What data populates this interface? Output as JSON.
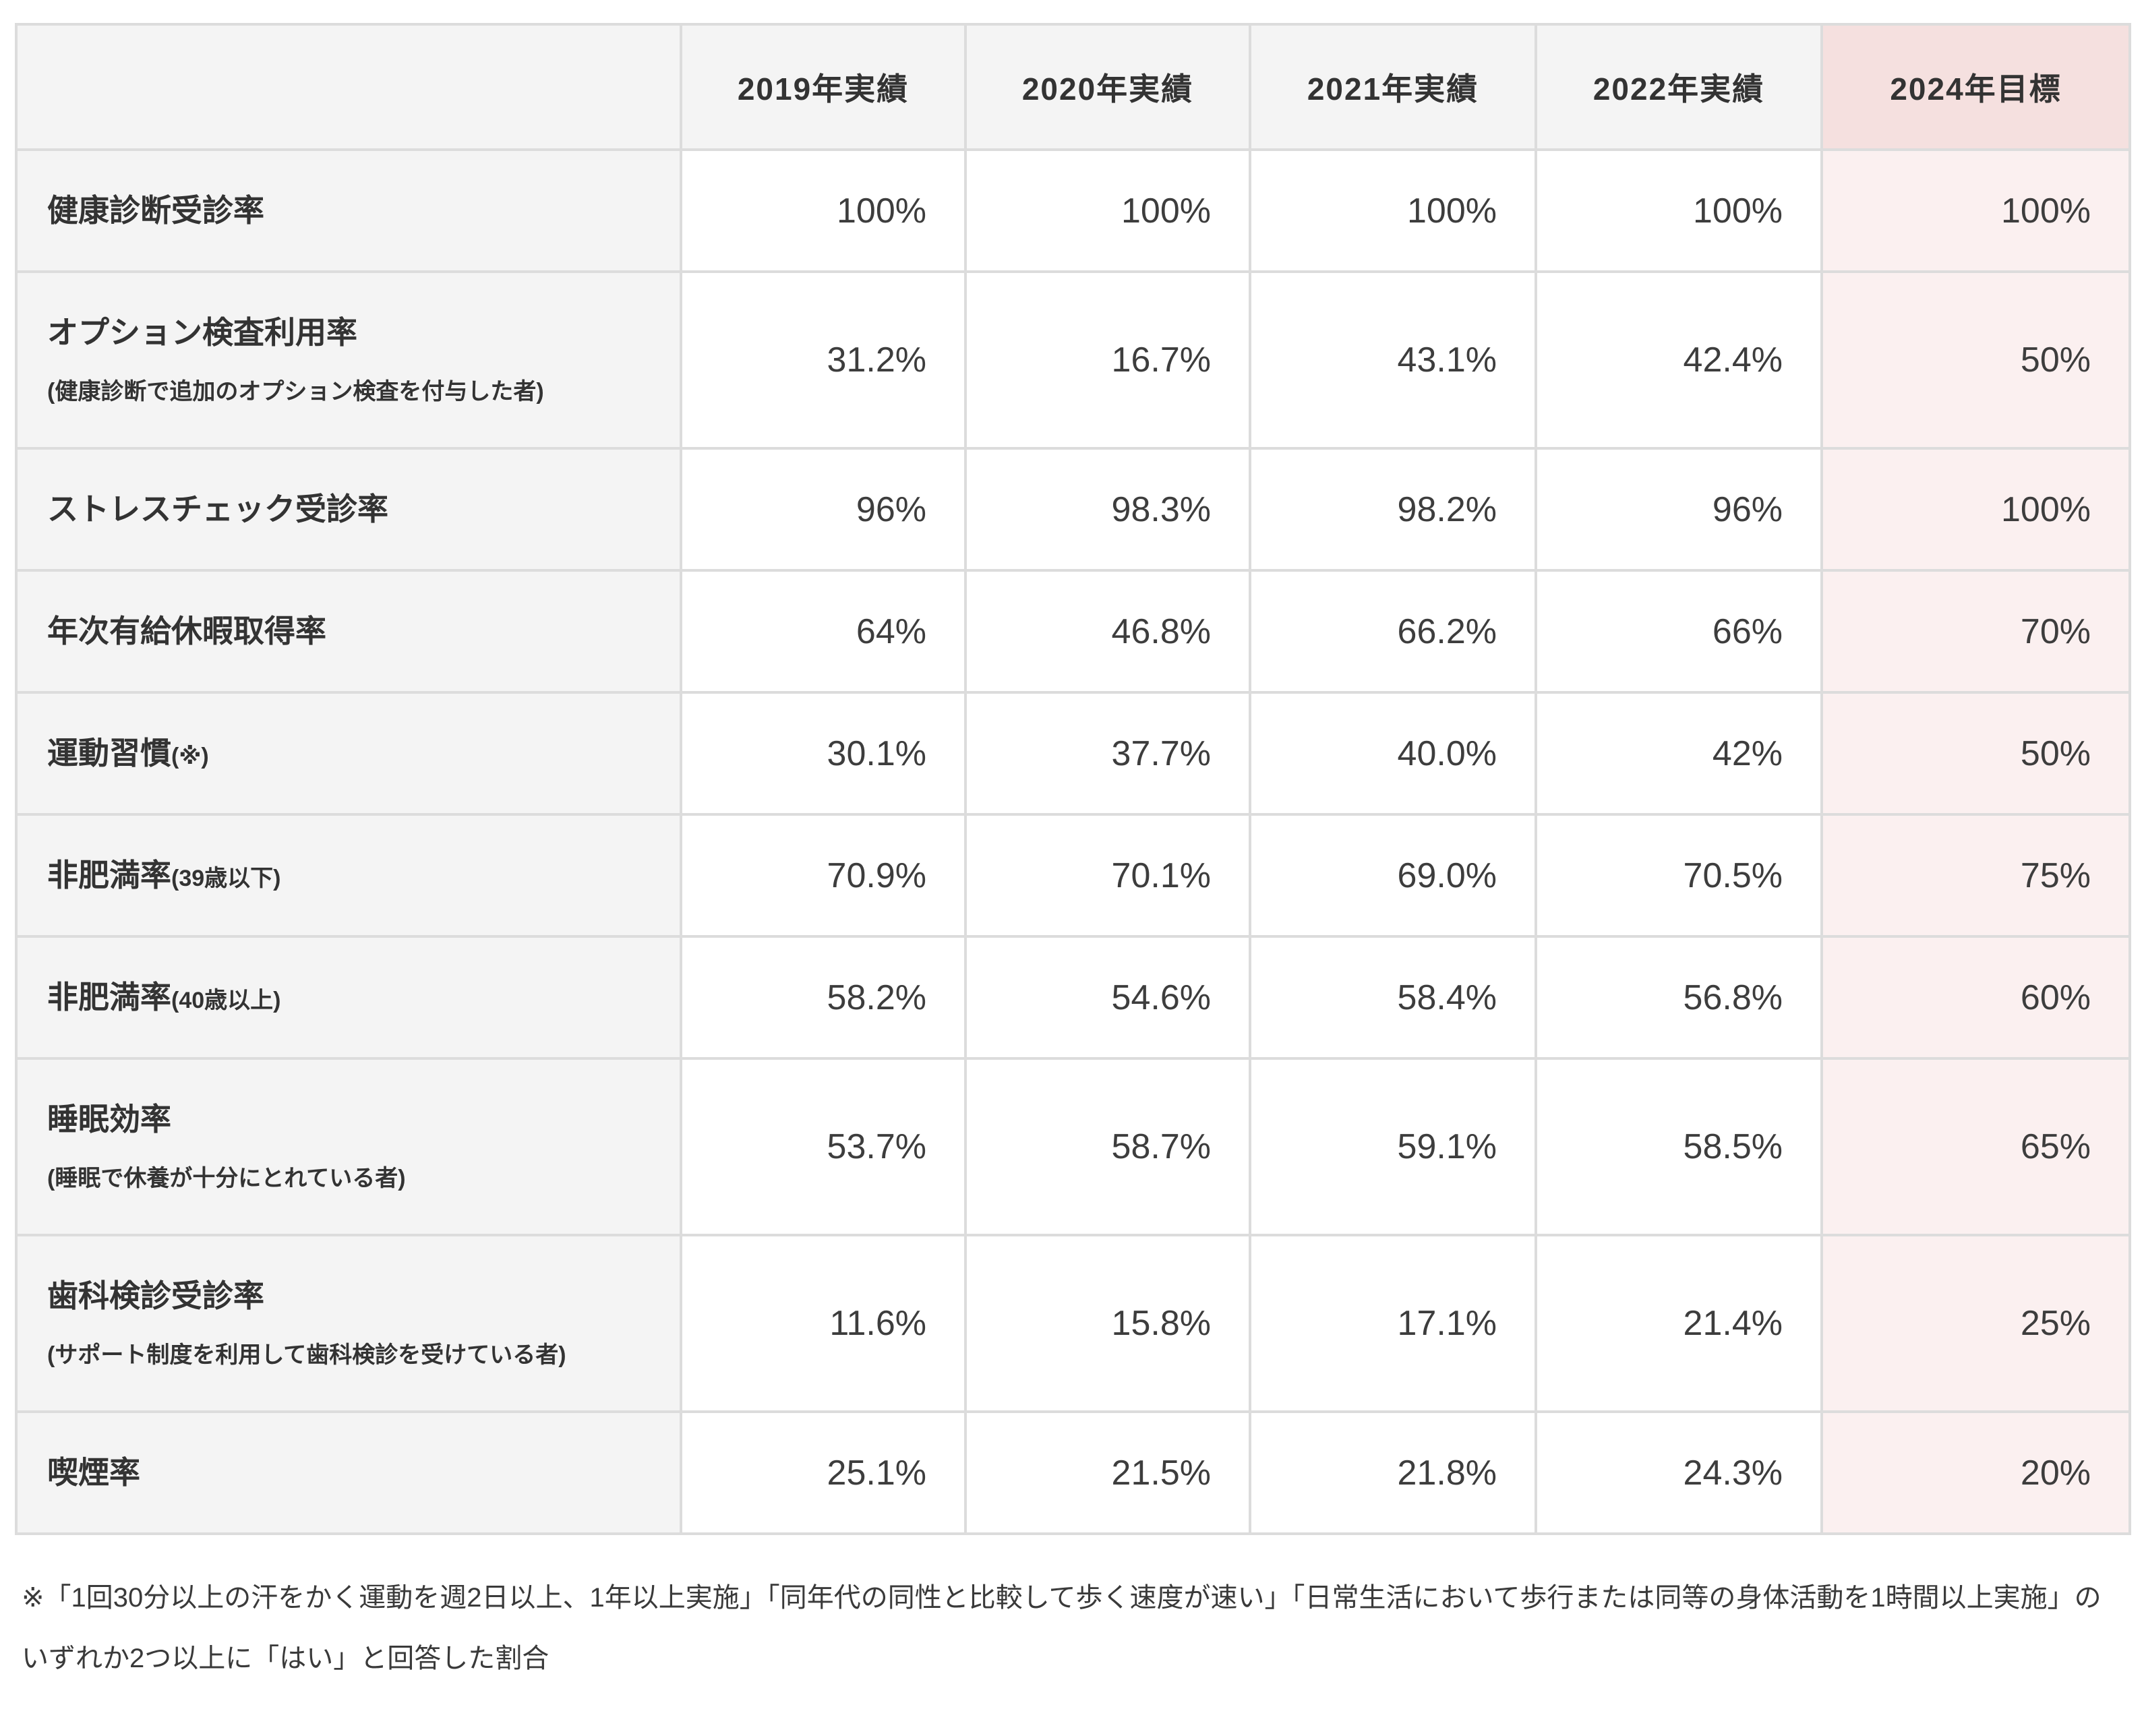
{
  "table": {
    "columns": [
      "",
      "2019年実績",
      "2020年実績",
      "2021年実績",
      "2022年実績",
      "2024年目標"
    ],
    "rows": [
      {
        "label": "健康診断受診率",
        "suffix": "",
        "note": "",
        "values": [
          "100%",
          "100%",
          "100%",
          "100%",
          "100%"
        ]
      },
      {
        "label": "オプション検査利用率",
        "suffix": "",
        "note": "(健康診断で追加のオプション検査を付与した者)",
        "values": [
          "31.2%",
          "16.7%",
          "43.1%",
          "42.4%",
          "50%"
        ]
      },
      {
        "label": "ストレスチェック受診率",
        "suffix": "",
        "note": "",
        "values": [
          "96%",
          "98.3%",
          "98.2%",
          "96%",
          "100%"
        ]
      },
      {
        "label": "年次有給休暇取得率",
        "suffix": "",
        "note": "",
        "values": [
          "64%",
          "46.8%",
          "66.2%",
          "66%",
          "70%"
        ]
      },
      {
        "label": "運動習慣",
        "suffix": "(※)",
        "note": "",
        "values": [
          "30.1%",
          "37.7%",
          "40.0%",
          "42%",
          "50%"
        ]
      },
      {
        "label": "非肥満率",
        "suffix": "(39歳以下)",
        "note": "",
        "values": [
          "70.9%",
          "70.1%",
          "69.0%",
          "70.5%",
          "75%"
        ]
      },
      {
        "label": "非肥満率",
        "suffix": "(40歳以上)",
        "note": "",
        "values": [
          "58.2%",
          "54.6%",
          "58.4%",
          "56.8%",
          "60%"
        ]
      },
      {
        "label": "睡眠効率",
        "suffix": "",
        "note": "(睡眠で休養が十分にとれている者)",
        "values": [
          "53.7%",
          "58.7%",
          "59.1%",
          "58.5%",
          "65%"
        ]
      },
      {
        "label": "歯科検診受診率",
        "suffix": "",
        "note": "(サポート制度を利用して歯科検診を受けている者)",
        "values": [
          "11.6%",
          "15.8%",
          "17.1%",
          "21.4%",
          "25%"
        ]
      },
      {
        "label": "喫煙率",
        "suffix": "",
        "note": "",
        "values": [
          "25.1%",
          "21.5%",
          "21.8%",
          "24.3%",
          "20%"
        ]
      }
    ]
  },
  "footnote": "※「1回30分以上の汗をかく運動を週2日以上、1年以上実施」「同年代の同性と比較して歩く速度が速い」「日常生活において歩行または同等の身体活動を1時間以上実施」のいずれか2つ以上に「はい」と回答した割合",
  "colors": {
    "header_gray": "#f4f4f4",
    "target_header_pink": "#f5e0df",
    "target_cell_pink": "#fbf0f0",
    "border": "#dcdcdc",
    "label_text": "#333333",
    "value_text": "#3d3d3d"
  },
  "chart_data": {
    "type": "table",
    "title": "",
    "categories": [
      "2019年実績",
      "2020年実績",
      "2021年実績",
      "2022年実績",
      "2024年目標"
    ],
    "series": [
      {
        "name": "健康診断受診率",
        "values": [
          100,
          100,
          100,
          100,
          100
        ]
      },
      {
        "name": "オプション検査利用率(健康診断で追加のオプション検査を付与した者)",
        "values": [
          31.2,
          16.7,
          43.1,
          42.4,
          50
        ]
      },
      {
        "name": "ストレスチェック受診率",
        "values": [
          96,
          98.3,
          98.2,
          96,
          100
        ]
      },
      {
        "name": "年次有給休暇取得率",
        "values": [
          64,
          46.8,
          66.2,
          66,
          70
        ]
      },
      {
        "name": "運動習慣(※)",
        "values": [
          30.1,
          37.7,
          40.0,
          42,
          50
        ]
      },
      {
        "name": "非肥満率(39歳以下)",
        "values": [
          70.9,
          70.1,
          69.0,
          70.5,
          75
        ]
      },
      {
        "name": "非肥満率(40歳以上)",
        "values": [
          58.2,
          54.6,
          58.4,
          56.8,
          60
        ]
      },
      {
        "name": "睡眠効率(睡眠で休養が十分にとれている者)",
        "values": [
          53.7,
          58.7,
          59.1,
          58.5,
          65
        ]
      },
      {
        "name": "歯科検診受診率(サポート制度を利用して歯科検診を受けている者)",
        "values": [
          11.6,
          15.8,
          17.1,
          21.4,
          25
        ]
      },
      {
        "name": "喫煙率",
        "values": [
          25.1,
          21.5,
          21.8,
          24.3,
          20
        ]
      }
    ],
    "unit": "%"
  }
}
